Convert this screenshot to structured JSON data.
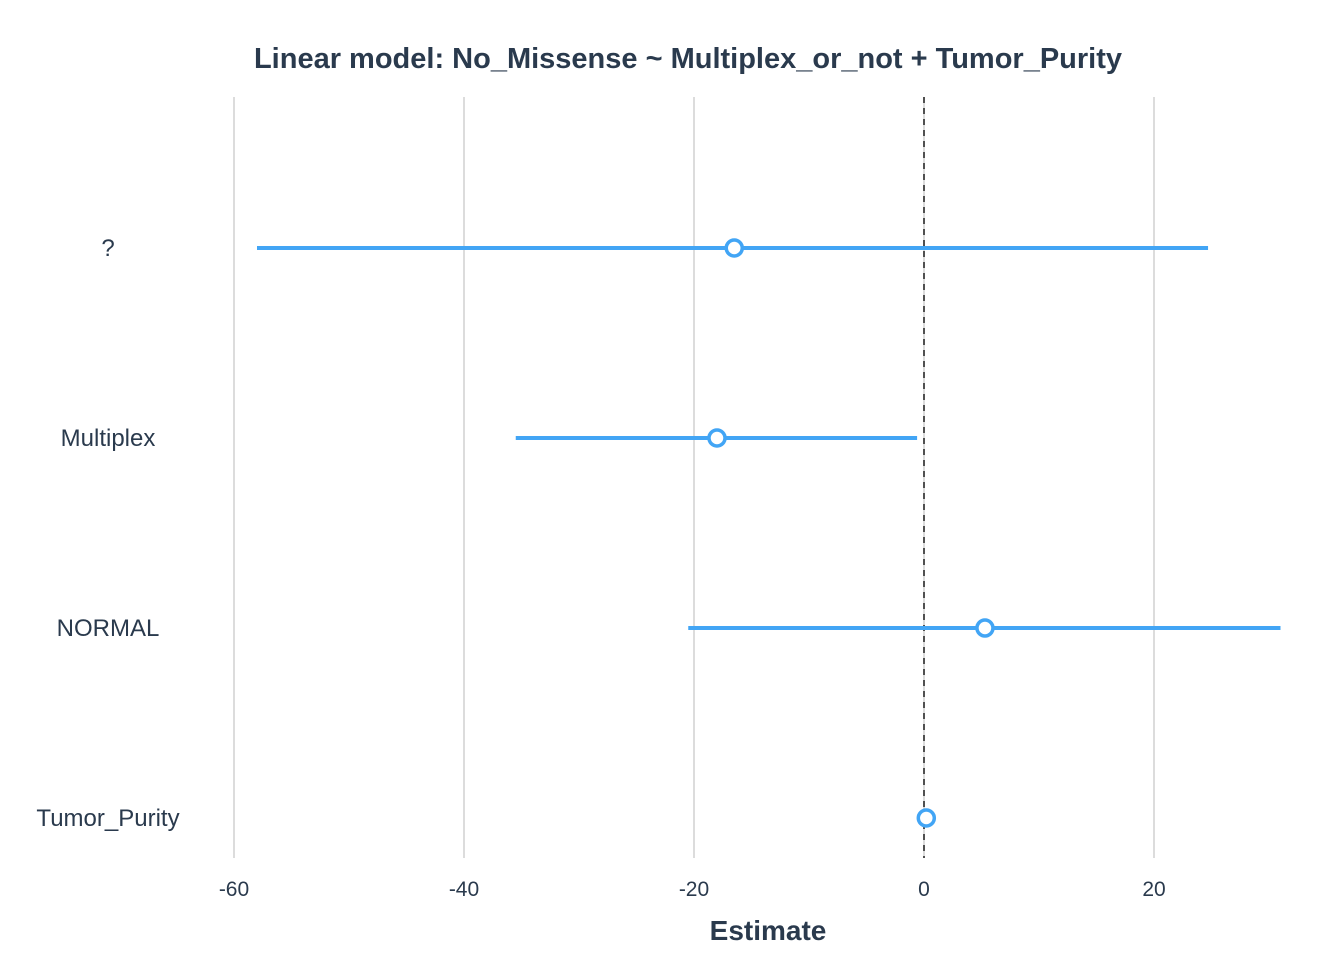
{
  "colors": {
    "series": "#42a5f5",
    "text": "#2a3a4d",
    "grid": "#dcdcdc",
    "reference": "#222222"
  },
  "chart_data": {
    "type": "forest",
    "title": "Linear model: No_Missense ~ Multiplex_or_not + Tumor_Purity",
    "xlabel": "Estimate",
    "ylabel": "",
    "xlim": [
      -68,
      31
    ],
    "xticks": [
      -60,
      -40,
      -20,
      0,
      20
    ],
    "xtick_labels": [
      "-60",
      "-40",
      "-20",
      "0",
      "20"
    ],
    "reference_line": 0,
    "grid": "vertical",
    "categories": [
      "?",
      "Multiplex",
      "NORMAL",
      "Tumor_Purity"
    ],
    "estimates": [
      -16.5,
      -18.0,
      5.3,
      0.2
    ],
    "ci_low": [
      -58.0,
      -35.5,
      -20.5,
      -0.3
    ],
    "ci_high": [
      24.7,
      -0.6,
      31.0,
      0.7
    ]
  }
}
